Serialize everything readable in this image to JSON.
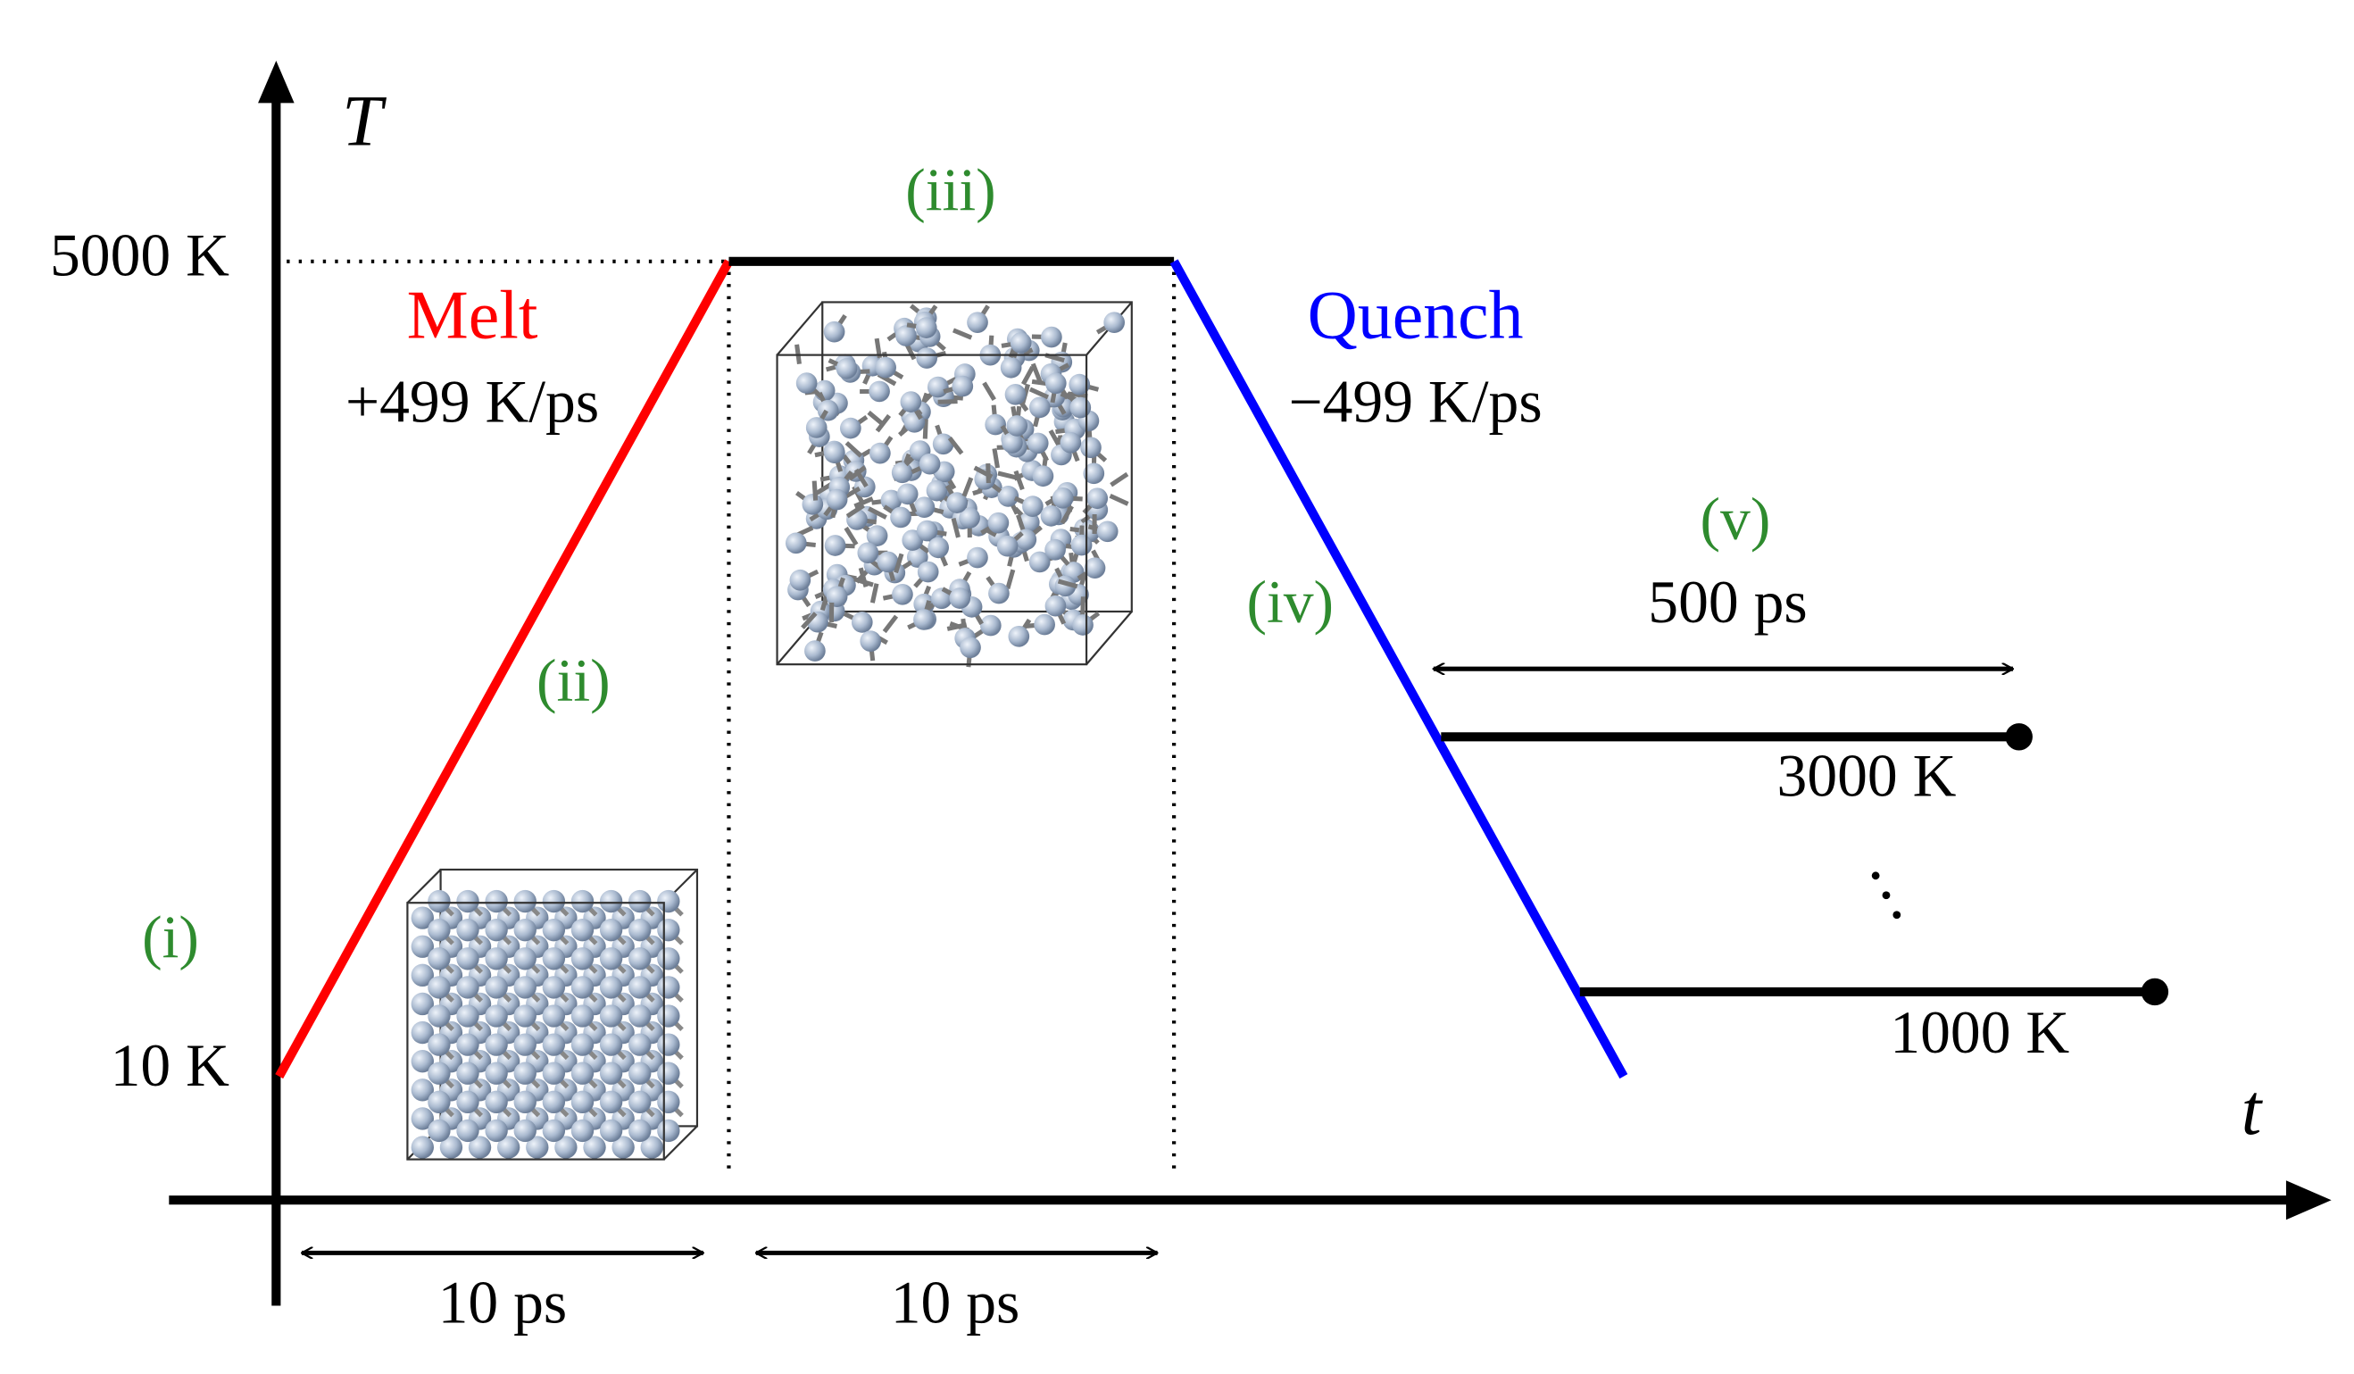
{
  "axes": {
    "y_label": "T",
    "x_label": "t",
    "y_high": "5000 K",
    "y_low": "10 K"
  },
  "melt": {
    "label": "Melt",
    "rate": "+499 K/ps"
  },
  "quench": {
    "label": "Quench",
    "rate": "−499 K/ps"
  },
  "steps": [
    "(i)",
    "(ii)",
    "(iii)",
    "(iv)",
    "(v)"
  ],
  "durations": {
    "melt": "10 ps",
    "hold": "10 ps",
    "anneal": "500 ps"
  },
  "anneal_temps": [
    "3000 K",
    "1000 K"
  ]
}
